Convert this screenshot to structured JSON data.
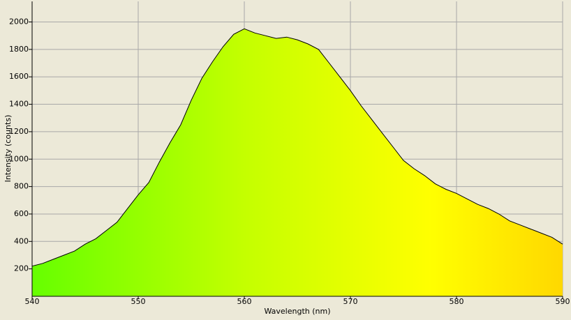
{
  "chart_data": {
    "type": "area",
    "x_label": "Wavelength (nm)",
    "y_label": "Intensity (counts)",
    "x": [
      540,
      541,
      542,
      543,
      544,
      545,
      546,
      547,
      548,
      549,
      550,
      551,
      552,
      553,
      554,
      555,
      556,
      557,
      558,
      559,
      560,
      561,
      562,
      563,
      564,
      565,
      566,
      567,
      568,
      569,
      570,
      571,
      572,
      573,
      574,
      575,
      576,
      577,
      578,
      579,
      580,
      581,
      582,
      583,
      584,
      585,
      586,
      587,
      588,
      589,
      590
    ],
    "series": [
      {
        "color": "#000000",
        "values": [
          220,
          240,
          270,
          300,
          330,
          380,
          420,
          480,
          540,
          640,
          740,
          830,
          980,
          1120,
          1250,
          1430,
          1590,
          1710,
          1820,
          1910,
          1950,
          1920,
          1900,
          1880,
          1890,
          1870,
          1840,
          1800,
          1700,
          1600,
          1500,
          1390,
          1290,
          1190,
          1090,
          990,
          930,
          880,
          820,
          780,
          750,
          710,
          670,
          640,
          600,
          550,
          520,
          490,
          460,
          430,
          380
        ]
      }
    ],
    "xlim": [
      540,
      590
    ],
    "xticks": [
      540,
      550,
      560,
      570,
      580,
      590
    ],
    "ylim": [
      0,
      2150
    ],
    "yticks": [
      200,
      400,
      600,
      800,
      1000,
      1200,
      1400,
      1600,
      1800,
      2000
    ],
    "grid": true
  }
}
